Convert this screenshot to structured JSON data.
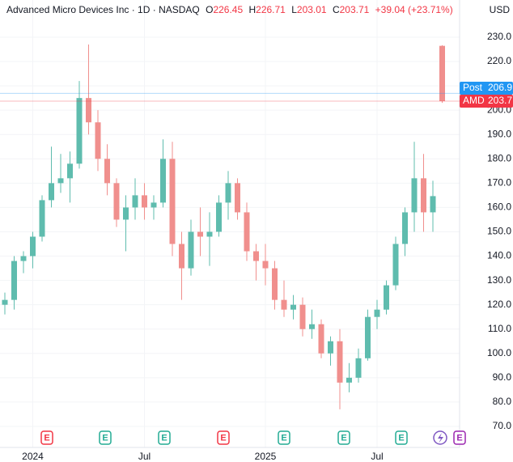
{
  "chart_data": {
    "type": "candlestick",
    "header": {
      "name": "Advanced Micro Devices Inc · 1D · NASDAQ",
      "open_label": "O",
      "open": "226.45",
      "high_label": "H",
      "high": "226.71",
      "low_label": "L",
      "low": "203.01",
      "close_label": "C",
      "close": "203.71",
      "change": "+39.04 (+23.71%)"
    },
    "currency": "USD",
    "categories": [
      null,
      null,
      null,
      "2024",
      null,
      null,
      null,
      null,
      null,
      null,
      null,
      null,
      null,
      null,
      null,
      "Jul",
      null,
      null,
      null,
      null,
      null,
      null,
      null,
      null,
      null,
      null,
      null,
      null,
      "2025",
      null,
      null,
      null,
      null,
      null,
      null,
      null,
      null,
      null,
      null,
      null,
      "Jul",
      null,
      null,
      null,
      null,
      null,
      null,
      null
    ],
    "open": [
      120,
      122,
      138,
      140,
      148,
      163,
      170,
      172,
      178,
      205,
      195,
      180,
      170,
      155,
      160,
      165,
      160,
      162,
      180,
      145,
      135,
      150,
      148,
      150,
      162,
      170,
      158,
      142,
      138,
      135,
      122,
      118,
      120,
      110,
      112,
      100,
      105,
      88,
      90,
      98,
      115,
      118,
      128,
      145,
      158,
      172,
      158,
      226.45
    ],
    "high": [
      125,
      140,
      142,
      150,
      165,
      185,
      182,
      183,
      212,
      227,
      200,
      186,
      172,
      165,
      172,
      170,
      165,
      188,
      187,
      150,
      155,
      160,
      158,
      165,
      175,
      172,
      162,
      145,
      145,
      138,
      130,
      124,
      123,
      118,
      114,
      107,
      110,
      96,
      102,
      118,
      122,
      130,
      148,
      160,
      187,
      182,
      171,
      226.71
    ],
    "low": [
      116,
      118,
      133,
      135,
      146,
      160,
      166,
      162,
      176,
      190,
      175,
      165,
      152,
      142,
      155,
      155,
      155,
      160,
      140,
      122,
      132,
      140,
      136,
      148,
      155,
      155,
      138,
      130,
      128,
      118,
      115,
      114,
      107,
      106,
      98,
      95,
      77,
      84,
      88,
      97,
      110,
      116,
      126,
      140,
      150,
      150,
      150,
      203.01
    ],
    "close": [
      122,
      138,
      140,
      148,
      163,
      170,
      172,
      178,
      205,
      195,
      180,
      170,
      155,
      160,
      165,
      160,
      162,
      180,
      145,
      135,
      150,
      148,
      150,
      162,
      170,
      158,
      142,
      138,
      135,
      122,
      118,
      120,
      110,
      112,
      100,
      105,
      88,
      90,
      98,
      115,
      118,
      128,
      145,
      158,
      172,
      158,
      164.67,
      203.71
    ],
    "up_color": "#5fbcae",
    "down_color": "#f08f8d",
    "ylim": [
      61.34,
      245.3
    ],
    "yticks": [
      {
        "value": 70,
        "label": "70.0"
      },
      {
        "value": 80,
        "label": "80.0"
      },
      {
        "value": 90,
        "label": "90.0"
      },
      {
        "value": 100,
        "label": "100.0"
      },
      {
        "value": 110,
        "label": "110.0"
      },
      {
        "value": 120,
        "label": "120.0"
      },
      {
        "value": 130,
        "label": "130.0"
      },
      {
        "value": 140,
        "label": "140.0"
      },
      {
        "value": 150,
        "label": "150.0"
      },
      {
        "value": 160,
        "label": "160.0"
      },
      {
        "value": 170,
        "label": "170.0"
      },
      {
        "value": 180,
        "label": "180.0"
      },
      {
        "value": 190,
        "label": "190.0"
      },
      {
        "value": 200,
        "label": "200.0"
      },
      {
        "value": 210,
        "label": "210.0"
      },
      {
        "value": 220,
        "label": "220.0"
      },
      {
        "value": 230,
        "label": "230.0"
      }
    ],
    "grid": true,
    "price_tags": [
      {
        "label": "Post",
        "value": "206.9",
        "color": "#2196f3"
      },
      {
        "label": "AMD",
        "value": "203.7",
        "color": "#f23645"
      }
    ],
    "events": [
      {
        "label": "E",
        "color": "#f23645"
      },
      {
        "label": "E",
        "color": "#22ab94"
      },
      {
        "label": "E",
        "color": "#22ab94"
      },
      {
        "label": "E",
        "color": "#f23645"
      },
      {
        "label": "E",
        "color": "#22ab94"
      },
      {
        "label": "E",
        "color": "#22ab94"
      },
      {
        "label": "E",
        "color": "#22ab94"
      },
      {
        "label": "E",
        "color": "#9c27b0"
      }
    ]
  }
}
